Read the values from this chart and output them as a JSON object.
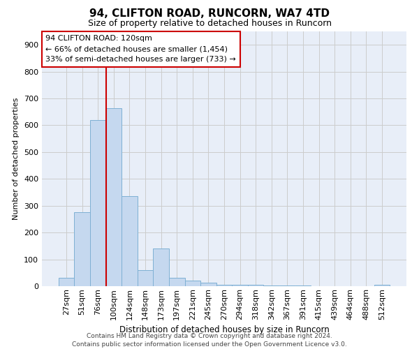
{
  "title": "94, CLIFTON ROAD, RUNCORN, WA7 4TD",
  "subtitle": "Size of property relative to detached houses in Runcorn",
  "xlabel": "Distribution of detached houses by size in Runcorn",
  "ylabel": "Number of detached properties",
  "categories": [
    "27sqm",
    "51sqm",
    "76sqm",
    "100sqm",
    "124sqm",
    "148sqm",
    "173sqm",
    "197sqm",
    "221sqm",
    "245sqm",
    "270sqm",
    "294sqm",
    "318sqm",
    "342sqm",
    "367sqm",
    "391sqm",
    "415sqm",
    "439sqm",
    "464sqm",
    "488sqm",
    "512sqm"
  ],
  "bar_heights": [
    30,
    275,
    620,
    665,
    335,
    60,
    140,
    30,
    20,
    12,
    5,
    5,
    5,
    3,
    3,
    3,
    0,
    0,
    0,
    0,
    5
  ],
  "bar_color": "#c5d8ef",
  "bar_edge_color": "#7eb0d4",
  "grid_color": "#cccccc",
  "background_color": "#ffffff",
  "plot_bg_color": "#e8eef8",
  "vline_x": 2.5,
  "vline_color": "#cc0000",
  "annotation_text": "94 CLIFTON ROAD: 120sqm\n← 66% of detached houses are smaller (1,454)\n33% of semi-detached houses are larger (733) →",
  "annotation_box_color": "#cc0000",
  "footer": "Contains HM Land Registry data © Crown copyright and database right 2024.\nContains public sector information licensed under the Open Government Licence v3.0.",
  "ylim": [
    0,
    950
  ],
  "yticks": [
    0,
    100,
    200,
    300,
    400,
    500,
    600,
    700,
    800,
    900
  ],
  "title_fontsize": 11,
  "subtitle_fontsize": 9,
  "xlabel_fontsize": 8.5,
  "ylabel_fontsize": 8,
  "tick_fontsize": 8,
  "annot_fontsize": 8,
  "footer_fontsize": 6.5
}
